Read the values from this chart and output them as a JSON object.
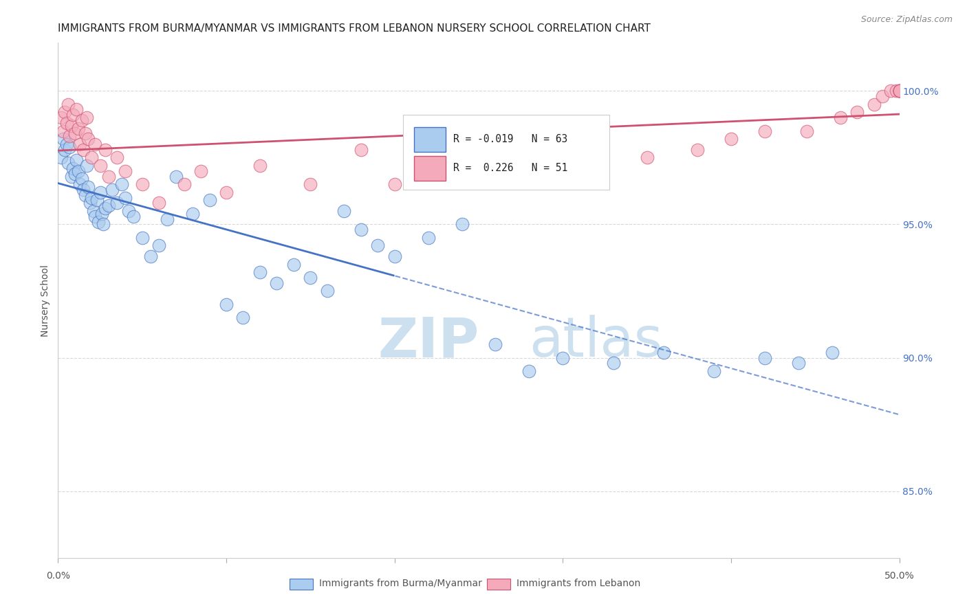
{
  "title": "IMMIGRANTS FROM BURMA/MYANMAR VS IMMIGRANTS FROM LEBANON NURSERY SCHOOL CORRELATION CHART",
  "source": "Source: ZipAtlas.com",
  "ylabel": "Nursery School",
  "xlim": [
    0.0,
    50.0
  ],
  "ylim": [
    82.5,
    101.8
  ],
  "yticks": [
    85.0,
    90.0,
    95.0,
    100.0
  ],
  "ytick_labels": [
    "85.0%",
    "90.0%",
    "95.0%",
    "100.0%"
  ],
  "legend_label_burma": "Immigrants from Burma/Myanmar",
  "legend_label_lebanon": "Immigrants from Lebanon",
  "color_burma": "#aaccee",
  "color_lebanon": "#f4aabb",
  "line_color_burma": "#4472c4",
  "line_color_lebanon": "#d05070",
  "background_color": "#ffffff",
  "grid_color": "#d8d8d8",
  "watermark_color": "#cce0f0",
  "burma_x": [
    0.2,
    0.3,
    0.4,
    0.5,
    0.6,
    0.7,
    0.8,
    0.9,
    1.0,
    1.1,
    1.2,
    1.3,
    1.4,
    1.5,
    1.6,
    1.7,
    1.8,
    1.9,
    2.0,
    2.1,
    2.2,
    2.3,
    2.4,
    2.5,
    2.6,
    2.7,
    2.8,
    3.0,
    3.2,
    3.5,
    3.8,
    4.0,
    4.2,
    4.5,
    5.0,
    5.5,
    6.0,
    6.5,
    7.0,
    8.0,
    9.0,
    10.0,
    11.0,
    12.0,
    13.0,
    14.0,
    15.0,
    16.0,
    17.0,
    18.0,
    19.0,
    20.0,
    22.0,
    24.0,
    26.0,
    28.0,
    30.0,
    33.0,
    36.0,
    39.0,
    42.0,
    44.0,
    46.0
  ],
  "burma_y": [
    97.5,
    98.2,
    97.8,
    98.0,
    97.3,
    97.9,
    96.8,
    97.1,
    96.9,
    97.4,
    97.0,
    96.5,
    96.7,
    96.3,
    96.1,
    97.2,
    96.4,
    95.8,
    96.0,
    95.5,
    95.3,
    95.9,
    95.1,
    96.2,
    95.4,
    95.0,
    95.6,
    95.7,
    96.3,
    95.8,
    96.5,
    96.0,
    95.5,
    95.3,
    94.5,
    93.8,
    94.2,
    95.2,
    96.8,
    95.4,
    95.9,
    92.0,
    91.5,
    93.2,
    92.8,
    93.5,
    93.0,
    92.5,
    95.5,
    94.8,
    94.2,
    93.8,
    94.5,
    95.0,
    90.5,
    89.5,
    90.0,
    89.8,
    90.2,
    89.5,
    90.0,
    89.8,
    90.2
  ],
  "lebanon_x": [
    0.2,
    0.3,
    0.4,
    0.5,
    0.6,
    0.7,
    0.8,
    0.9,
    1.0,
    1.1,
    1.2,
    1.3,
    1.4,
    1.5,
    1.6,
    1.7,
    1.8,
    2.0,
    2.2,
    2.5,
    2.8,
    3.0,
    3.5,
    4.0,
    5.0,
    6.0,
    7.5,
    8.5,
    10.0,
    12.0,
    15.0,
    18.0,
    20.0,
    25.0,
    30.0,
    35.0,
    38.0,
    40.0,
    42.0,
    44.5,
    46.5,
    47.5,
    48.5,
    49.0,
    49.5,
    49.8,
    50.0,
    50.0,
    50.0,
    50.0,
    50.0
  ],
  "lebanon_y": [
    99.0,
    98.5,
    99.2,
    98.8,
    99.5,
    98.3,
    98.7,
    99.1,
    98.4,
    99.3,
    98.6,
    98.0,
    98.9,
    97.8,
    98.4,
    99.0,
    98.2,
    97.5,
    98.0,
    97.2,
    97.8,
    96.8,
    97.5,
    97.0,
    96.5,
    95.8,
    96.5,
    97.0,
    96.2,
    97.2,
    96.5,
    97.8,
    96.5,
    97.2,
    96.8,
    97.5,
    97.8,
    98.2,
    98.5,
    98.5,
    99.0,
    99.2,
    99.5,
    99.8,
    100.0,
    100.0,
    100.0,
    100.0,
    100.0,
    100.0,
    100.0
  ],
  "title_fontsize": 11,
  "axis_label_fontsize": 10,
  "tick_fontsize": 10,
  "source_fontsize": 9
}
